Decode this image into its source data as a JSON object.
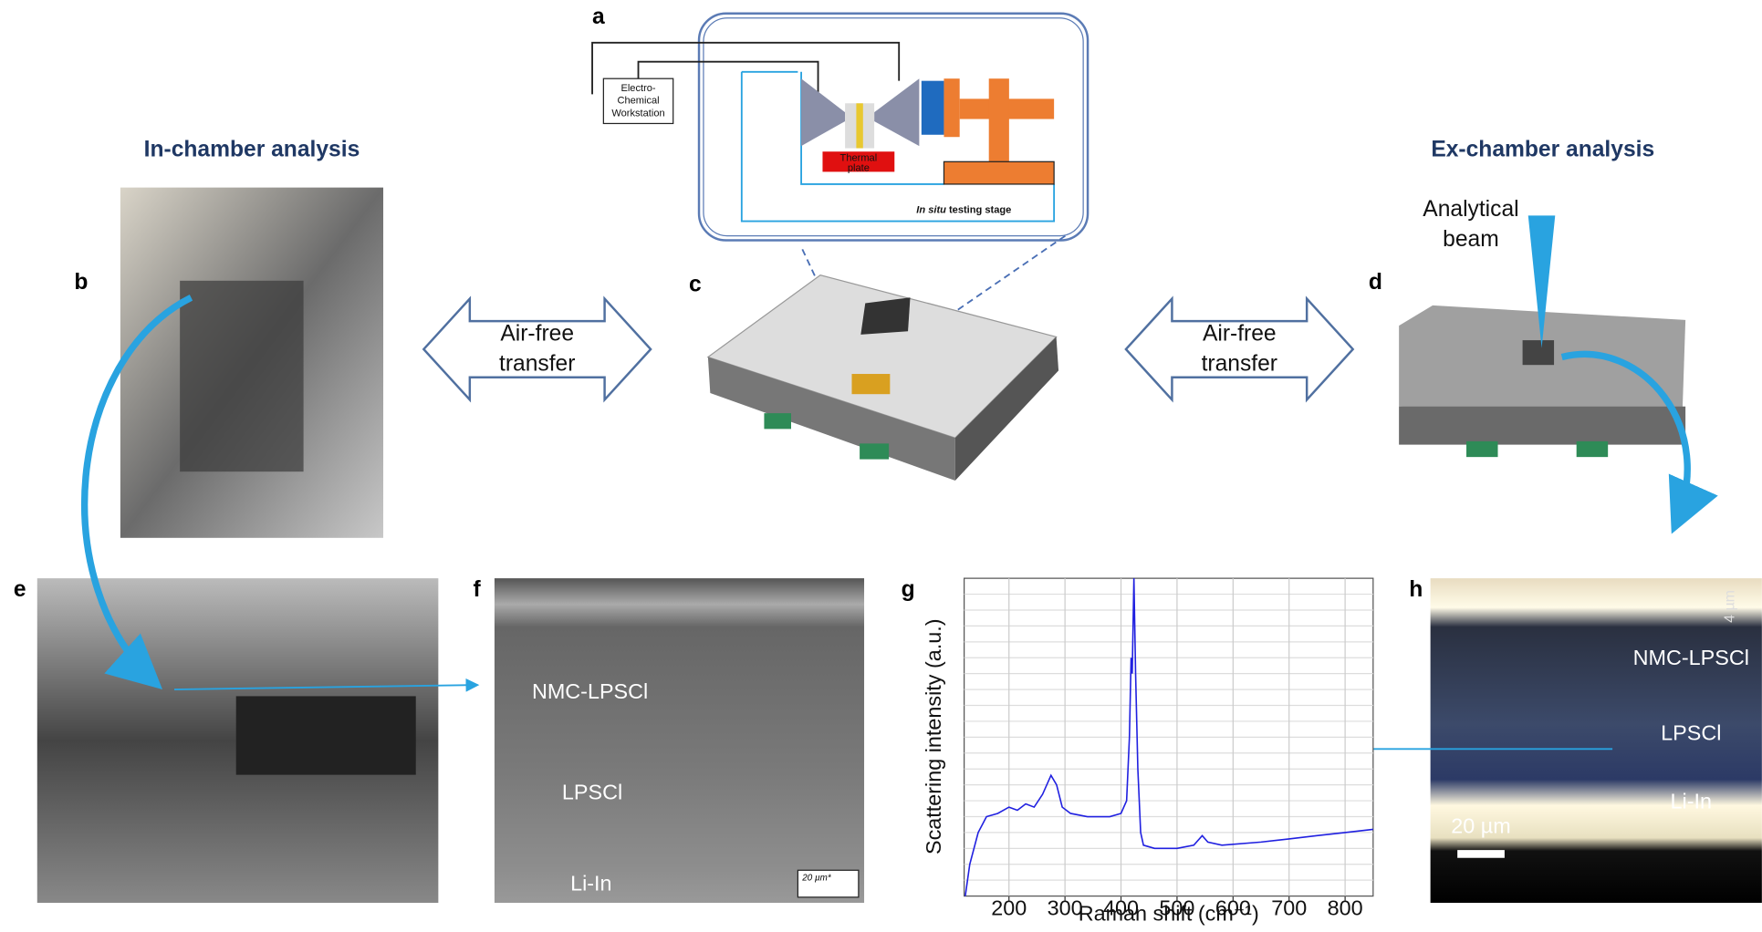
{
  "panels": [
    "a",
    "b",
    "c",
    "d",
    "e",
    "f",
    "g",
    "h"
  ],
  "headings": {
    "in_chamber": "In-chamber analysis",
    "ex_chamber": "Ex-chamber analysis"
  },
  "transfer_left": [
    "Air-free",
    "transfer"
  ],
  "transfer_right": [
    "Air-free",
    "transfer"
  ],
  "schematic": {
    "workstation": [
      "Electro-",
      "Chemical",
      "Workstation"
    ],
    "thermal_plate": [
      "Thermal",
      "plate"
    ],
    "stage_italic": "In situ",
    "stage_rest": "testing stage"
  },
  "beam": [
    "Analytical",
    "beam"
  ],
  "panel_f": {
    "layer1": "NMC-LPSCl",
    "layer2": "LPSCl",
    "layer3": "Li-In",
    "scale": "20 µm*"
  },
  "panel_h": {
    "layer1": "NMC-LPSCl",
    "layer2": "LPSCl",
    "layer3": "Li-In",
    "scale": "20 µm",
    "scale_vertical": "4 µm"
  },
  "chart_data": {
    "type": "line",
    "x_label": "Raman shift (cm⁻¹)",
    "y_label": "Scattering intensity (a.u.)",
    "color": "#2020e0",
    "x": [
      122,
      130,
      145,
      160,
      180,
      200,
      215,
      230,
      245,
      260,
      275,
      285,
      295,
      310,
      340,
      380,
      400,
      410,
      415,
      418,
      420,
      423,
      426,
      430,
      435,
      440,
      460,
      500,
      530,
      545,
      555,
      580,
      650,
      700,
      750,
      800,
      850
    ],
    "values": [
      0,
      10,
      20,
      25,
      26,
      28,
      27,
      29,
      28,
      32,
      38,
      35,
      28,
      26,
      25,
      25,
      26,
      30,
      50,
      75,
      70,
      100,
      70,
      40,
      20,
      16,
      15,
      15,
      16,
      19,
      17,
      16,
      17,
      18,
      19,
      20,
      21
    ],
    "xlim": [
      120,
      850
    ],
    "ylim": [
      0,
      100
    ],
    "xticks": [
      200,
      300,
      400,
      500,
      600,
      700,
      800
    ],
    "grid": true
  }
}
